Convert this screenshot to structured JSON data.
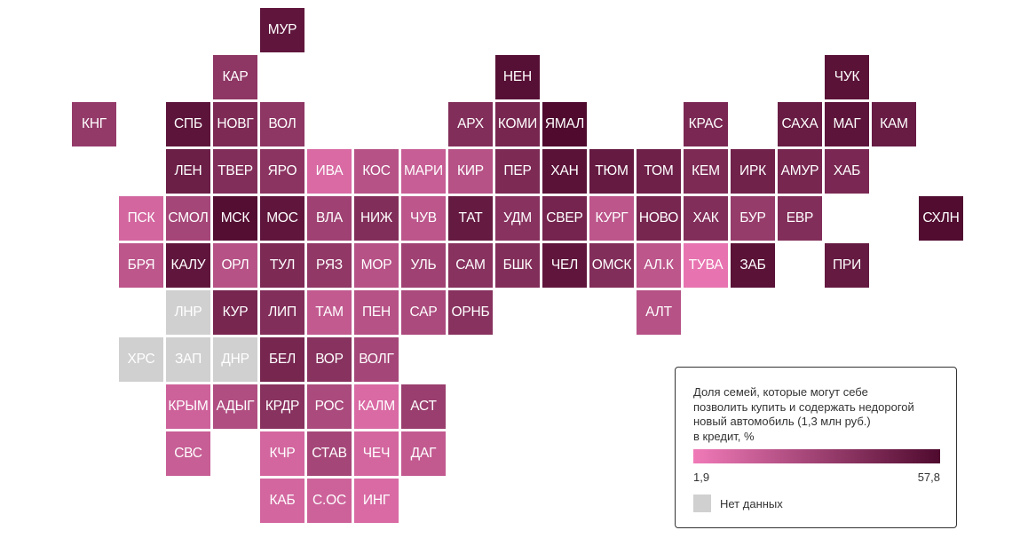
{
  "colors": {
    "low": "#f07ab8",
    "high": "#4f0a2e",
    "no_data": "#d0d0d0"
  },
  "legend": {
    "title": "Доля семей, которые могут себе\nпозволить купить и содержать недорогой\nновый автомобиль (1,3 млн руб.)\nв кредит, %",
    "min_label": "1,9",
    "max_label": "57,8",
    "min_value": 1.9,
    "max_value": 57.8,
    "no_data_label": "Нет данных"
  },
  "regions": [
    {
      "label": "МУР",
      "col": 5,
      "row": 0,
      "value": 52
    },
    {
      "label": "КАР",
      "col": 4,
      "row": 1,
      "value": 36
    },
    {
      "label": "НЕН",
      "col": 10,
      "row": 1,
      "value": 55
    },
    {
      "label": "ЧУК",
      "col": 17,
      "row": 1,
      "value": 54
    },
    {
      "label": "КНГ",
      "col": 1,
      "row": 2,
      "value": 34
    },
    {
      "label": "СПБ",
      "col": 3,
      "row": 2,
      "value": 53
    },
    {
      "label": "НОВГ",
      "col": 4,
      "row": 2,
      "value": 42
    },
    {
      "label": "ВОЛ",
      "col": 5,
      "row": 2,
      "value": 36
    },
    {
      "label": "АРХ",
      "col": 9,
      "row": 2,
      "value": 40
    },
    {
      "label": "КОМИ",
      "col": 10,
      "row": 2,
      "value": 44
    },
    {
      "label": "ЯМАЛ",
      "col": 11,
      "row": 2,
      "value": 57.8
    },
    {
      "label": "КРАС",
      "col": 14,
      "row": 2,
      "value": 43
    },
    {
      "label": "САХА",
      "col": 16,
      "row": 2,
      "value": 49
    },
    {
      "label": "МАГ",
      "col": 17,
      "row": 2,
      "value": 53
    },
    {
      "label": "КАМ",
      "col": 18,
      "row": 2,
      "value": 49
    },
    {
      "label": "ЛЕН",
      "col": 3,
      "row": 3,
      "value": 48
    },
    {
      "label": "ТВЕР",
      "col": 4,
      "row": 3,
      "value": 40
    },
    {
      "label": "ЯРО",
      "col": 5,
      "row": 3,
      "value": 37
    },
    {
      "label": "ИВА",
      "col": 6,
      "row": 3,
      "value": 10
    },
    {
      "label": "КОС",
      "col": 7,
      "row": 3,
      "value": 22
    },
    {
      "label": "МАРИ",
      "col": 8,
      "row": 3,
      "value": 16
    },
    {
      "label": "КИР",
      "col": 9,
      "row": 3,
      "value": 22
    },
    {
      "label": "ПЕР",
      "col": 10,
      "row": 3,
      "value": 42
    },
    {
      "label": "ХАН",
      "col": 11,
      "row": 3,
      "value": 54
    },
    {
      "label": "ТЮМ",
      "col": 12,
      "row": 3,
      "value": 50
    },
    {
      "label": "ТОМ",
      "col": 13,
      "row": 3,
      "value": 47
    },
    {
      "label": "КЕМ",
      "col": 14,
      "row": 3,
      "value": 42
    },
    {
      "label": "ИРК",
      "col": 15,
      "row": 3,
      "value": 46
    },
    {
      "label": "АМУР",
      "col": 16,
      "row": 3,
      "value": 44
    },
    {
      "label": "ХАБ",
      "col": 17,
      "row": 3,
      "value": 43
    },
    {
      "label": "ПСК",
      "col": 2,
      "row": 4,
      "value": 12
    },
    {
      "label": "СМОЛ",
      "col": 3,
      "row": 4,
      "value": 28
    },
    {
      "label": "МСК",
      "col": 4,
      "row": 4,
      "value": 56
    },
    {
      "label": "МОС",
      "col": 5,
      "row": 4,
      "value": 52
    },
    {
      "label": "ВЛА",
      "col": 6,
      "row": 4,
      "value": 30
    },
    {
      "label": "НИЖ",
      "col": 7,
      "row": 4,
      "value": 40
    },
    {
      "label": "ЧУВ",
      "col": 8,
      "row": 4,
      "value": 20
    },
    {
      "label": "ТАТ",
      "col": 9,
      "row": 4,
      "value": 50
    },
    {
      "label": "УДМ",
      "col": 10,
      "row": 4,
      "value": 38
    },
    {
      "label": "СВЕР",
      "col": 11,
      "row": 4,
      "value": 45
    },
    {
      "label": "КУРГ",
      "col": 12,
      "row": 4,
      "value": 20
    },
    {
      "label": "НОВО",
      "col": 13,
      "row": 4,
      "value": 44
    },
    {
      "label": "ХАК",
      "col": 14,
      "row": 4,
      "value": 40
    },
    {
      "label": "БУР",
      "col": 15,
      "row": 4,
      "value": 33
    },
    {
      "label": "ЕВР",
      "col": 16,
      "row": 4,
      "value": 40
    },
    {
      "label": "СХЛН",
      "col": 19,
      "row": 4,
      "value": 57
    },
    {
      "label": "БРЯ",
      "col": 2,
      "row": 5,
      "value": 20
    },
    {
      "label": "КАЛУ",
      "col": 3,
      "row": 5,
      "value": 52
    },
    {
      "label": "ОРЛ",
      "col": 4,
      "row": 5,
      "value": 22
    },
    {
      "label": "ТУЛ",
      "col": 5,
      "row": 5,
      "value": 42
    },
    {
      "label": "РЯЗ",
      "col": 6,
      "row": 5,
      "value": 35
    },
    {
      "label": "МОР",
      "col": 7,
      "row": 5,
      "value": 22
    },
    {
      "label": "УЛЬ",
      "col": 8,
      "row": 5,
      "value": 30
    },
    {
      "label": "САМ",
      "col": 9,
      "row": 5,
      "value": 38
    },
    {
      "label": "БШК",
      "col": 10,
      "row": 5,
      "value": 40
    },
    {
      "label": "ЧЕЛ",
      "col": 11,
      "row": 5,
      "value": 52
    },
    {
      "label": "ОМСК",
      "col": 12,
      "row": 5,
      "value": 40
    },
    {
      "label": "АЛ.К",
      "col": 13,
      "row": 5,
      "value": 20
    },
    {
      "label": "ТУВА",
      "col": 14,
      "row": 5,
      "value": 5
    },
    {
      "label": "ЗАБ",
      "col": 15,
      "row": 5,
      "value": 54
    },
    {
      "label": "ПРИ",
      "col": 17,
      "row": 5,
      "value": 50
    },
    {
      "label": "ЛНР",
      "col": 3,
      "row": 6,
      "value": null
    },
    {
      "label": "КУР",
      "col": 4,
      "row": 6,
      "value": 44
    },
    {
      "label": "ЛИП",
      "col": 5,
      "row": 6,
      "value": 40
    },
    {
      "label": "ТАМ",
      "col": 6,
      "row": 6,
      "value": 18
    },
    {
      "label": "ПЕН",
      "col": 7,
      "row": 6,
      "value": 22
    },
    {
      "label": "САР",
      "col": 8,
      "row": 6,
      "value": 26
    },
    {
      "label": "ОРНБ",
      "col": 9,
      "row": 6,
      "value": 38
    },
    {
      "label": "АЛТ",
      "col": 13,
      "row": 6,
      "value": 22
    },
    {
      "label": "ХРС",
      "col": 2,
      "row": 7,
      "value": null
    },
    {
      "label": "ЗАП",
      "col": 3,
      "row": 7,
      "value": null
    },
    {
      "label": "ДНР",
      "col": 4,
      "row": 7,
      "value": null
    },
    {
      "label": "БЕЛ",
      "col": 5,
      "row": 7,
      "value": 44
    },
    {
      "label": "ВОР",
      "col": 6,
      "row": 7,
      "value": 38
    },
    {
      "label": "ВОЛГ",
      "col": 7,
      "row": 7,
      "value": 28
    },
    {
      "label": "КРЫМ",
      "col": 3,
      "row": 8,
      "value": 14
    },
    {
      "label": "АДЫГ",
      "col": 4,
      "row": 8,
      "value": 24
    },
    {
      "label": "КРДР",
      "col": 5,
      "row": 8,
      "value": 38
    },
    {
      "label": "РОС",
      "col": 6,
      "row": 8,
      "value": 26
    },
    {
      "label": "КАЛМ",
      "col": 7,
      "row": 8,
      "value": 10
    },
    {
      "label": "АСТ",
      "col": 8,
      "row": 8,
      "value": 32
    },
    {
      "label": "СВС",
      "col": 3,
      "row": 9,
      "value": 16
    },
    {
      "label": "КЧР",
      "col": 5,
      "row": 9,
      "value": 12
    },
    {
      "label": "СТАВ",
      "col": 6,
      "row": 9,
      "value": 28
    },
    {
      "label": "ЧЕЧ",
      "col": 7,
      "row": 9,
      "value": 12
    },
    {
      "label": "ДАГ",
      "col": 8,
      "row": 9,
      "value": 18
    },
    {
      "label": "КАБ",
      "col": 5,
      "row": 10,
      "value": 12
    },
    {
      "label": "С.ОС",
      "col": 6,
      "row": 10,
      "value": 14
    },
    {
      "label": "ИНГ",
      "col": 7,
      "row": 10,
      "value": 10
    }
  ]
}
